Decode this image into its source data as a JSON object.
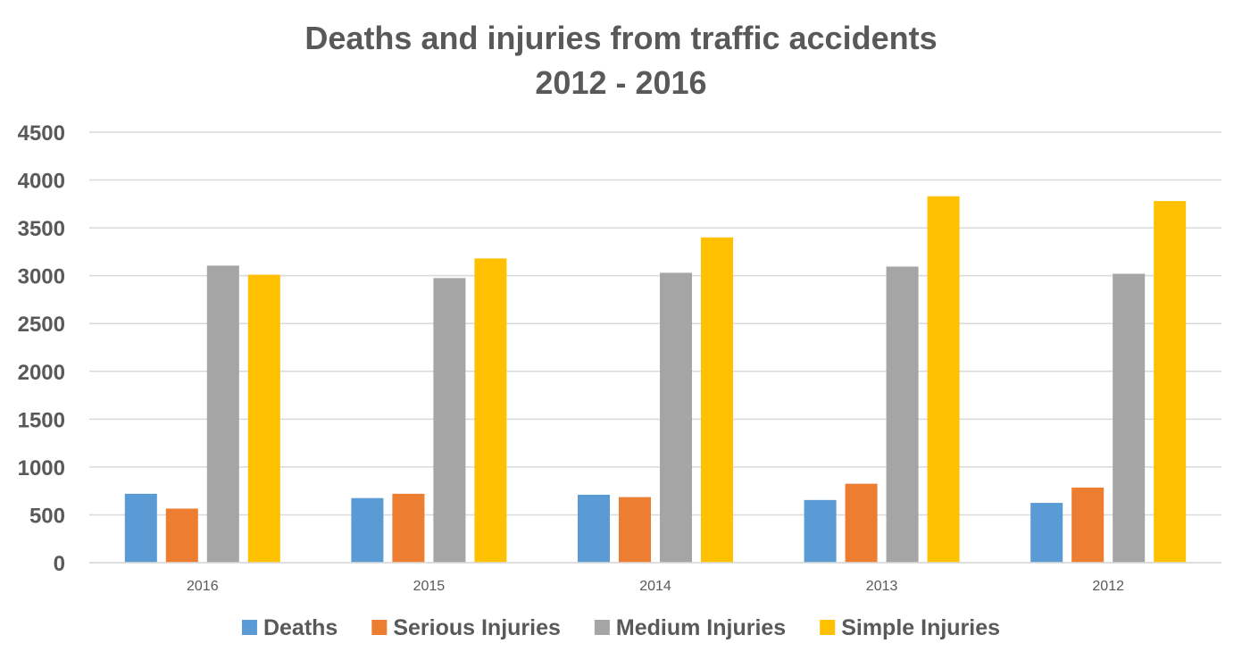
{
  "chart_data": {
    "type": "bar",
    "title": "Deaths and injuries from traffic accidents",
    "subtitle": "2012 - 2016",
    "xlabel": "",
    "ylabel": "",
    "ylim": [
      0,
      4500
    ],
    "yticks": [
      0,
      500,
      1000,
      1500,
      2000,
      2500,
      3000,
      3500,
      4000,
      4500
    ],
    "grid": true,
    "legend_position": "bottom",
    "categories": [
      "2016",
      "2015",
      "2014",
      "2013",
      "2012"
    ],
    "series": [
      {
        "name": "Deaths",
        "color": "#5B9BD5",
        "values": [
          720,
          675,
          710,
          655,
          625
        ]
      },
      {
        "name": "Serious Injuries",
        "color": "#ED7D31",
        "values": [
          565,
          720,
          685,
          825,
          785
        ]
      },
      {
        "name": "Medium Injuries",
        "color": "#A5A5A5",
        "values": [
          3105,
          2975,
          3030,
          3095,
          3020
        ]
      },
      {
        "name": "Simple Injuries",
        "color": "#FFC000",
        "values": [
          3010,
          3180,
          3400,
          3830,
          3780
        ]
      }
    ]
  }
}
